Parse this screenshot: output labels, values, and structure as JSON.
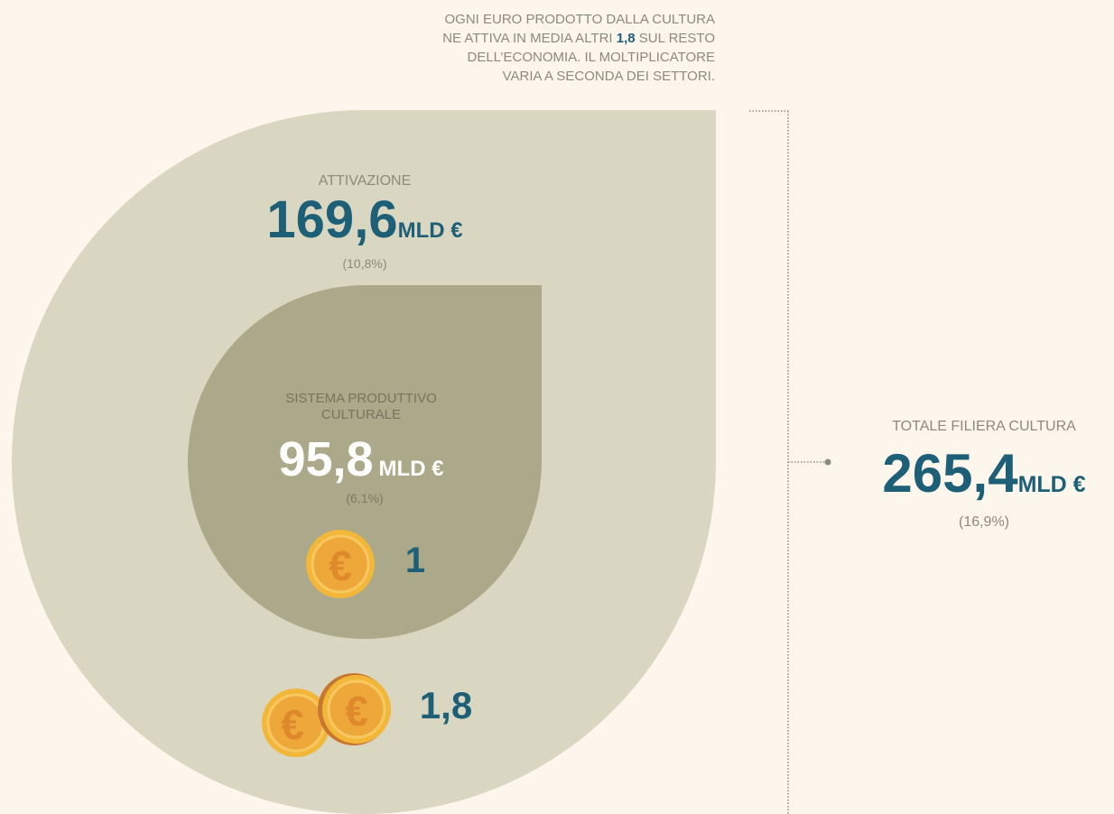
{
  "intro": {
    "lines": [
      "OGNI EURO PRODOTTO DALLA CULTURA",
      [
        "NE ATTIVA IN MEDIA ALTRI",
        "1,8",
        "SUL RESTO"
      ],
      "DELL’ECONOMIA. IL MOLTIPLICATORE",
      "VARIA A SECONDA DEI SETTORI."
    ]
  },
  "attivazione": {
    "label": "ATTIVAZIONE",
    "value": "169,6",
    "unit": "MLD €",
    "share": "(10,8%)",
    "coin_label": "1,8"
  },
  "sistema": {
    "label_lines": [
      "SISTEMA PRODUTTIVO",
      "CULTURALE"
    ],
    "value": "95,8",
    "unit": "MLD €",
    "share": "(6,1%)",
    "coin_label": "1"
  },
  "totale": {
    "label": "TOTALE FILIERA CULTURA",
    "value": "265,4",
    "unit": "MLD €",
    "share": "(16,9%)"
  }
}
